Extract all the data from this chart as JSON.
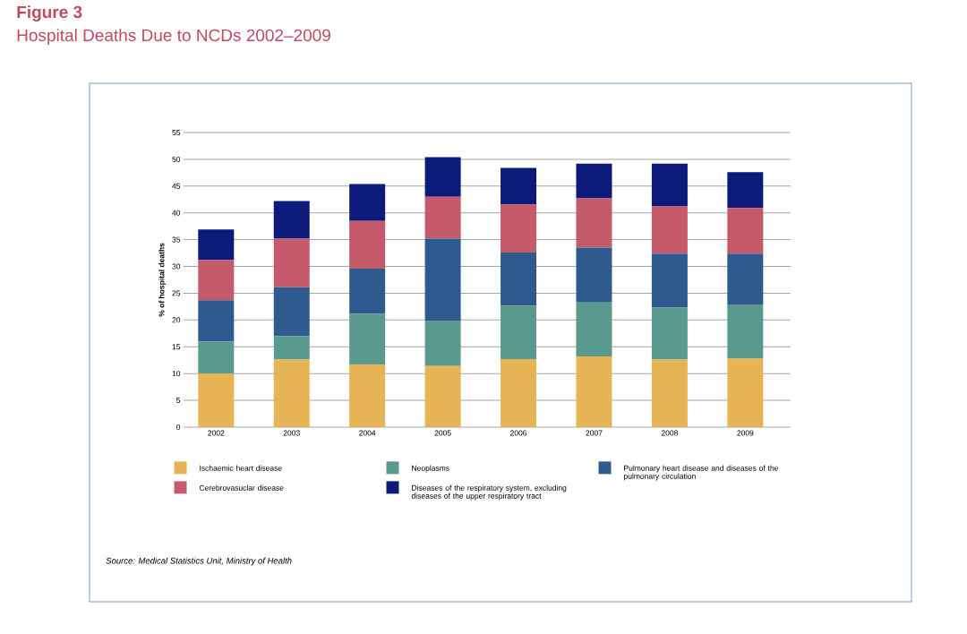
{
  "chart_data": {
    "type": "bar",
    "stacked": true,
    "title": "Figure 3",
    "subtitle": "Hospital Deaths Due to NCDs 2002–2009",
    "ylabel": "% of hospital deaths",
    "categories": [
      "2002",
      "2003",
      "2004",
      "2005",
      "2006",
      "2007",
      "2008",
      "2009"
    ],
    "series": [
      {
        "name": "Ischaemic heart disease",
        "color": "#e6b455",
        "values": [
          10.0,
          12.6,
          11.7,
          11.4,
          12.7,
          13.2,
          12.6,
          12.8
        ]
      },
      {
        "name": "Neoplasms",
        "color": "#5a9a8e",
        "values": [
          6.0,
          4.4,
          9.5,
          8.5,
          10.0,
          10.2,
          9.7,
          10.1
        ]
      },
      {
        "name": "Pulmonary heart disease and diseases of the pulmonary circulation",
        "color": "#2e5a8f",
        "values": [
          7.7,
          9.1,
          8.4,
          15.3,
          9.9,
          10.1,
          10.1,
          9.5
        ]
      },
      {
        "name": "Cerebrovasuclar disease",
        "color": "#c45a6a",
        "values": [
          7.5,
          9.1,
          8.9,
          7.8,
          9.0,
          9.2,
          8.8,
          8.5
        ]
      },
      {
        "name": "Diseases of the respiratory system, excluding diseases of the upper respiratory tract",
        "color": "#0c1a7a",
        "values": [
          5.7,
          7.0,
          6.9,
          7.4,
          6.8,
          6.5,
          8.0,
          6.7
        ]
      }
    ],
    "ylim": [
      0,
      55
    ],
    "yticks": [
      0,
      5,
      10,
      15,
      20,
      25,
      30,
      35,
      40,
      45,
      50,
      55
    ],
    "grid": "y",
    "legend": "bottom",
    "annotations": [
      "Source: Medical Statistics Unit, Ministry of Health"
    ]
  }
}
